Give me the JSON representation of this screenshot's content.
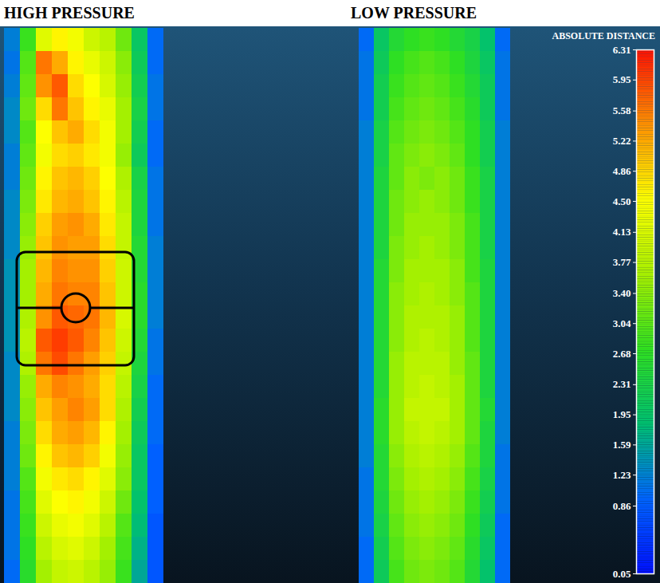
{
  "chart_data": {
    "type": "heatmap",
    "panels": [
      {
        "title": "HIGH PRESSURE",
        "cells": [
          [
            1.2,
            2.8,
            4.2,
            4.6,
            4.4,
            4.0,
            3.8,
            3.2,
            2.0,
            1.0
          ],
          [
            1.1,
            3.0,
            5.6,
            5.2,
            4.6,
            4.3,
            4.0,
            3.4,
            2.1,
            1.0
          ],
          [
            1.2,
            3.1,
            5.4,
            5.8,
            4.8,
            4.5,
            4.1,
            3.5,
            2.2,
            1.1
          ],
          [
            1.3,
            3.2,
            4.8,
            5.6,
            5.0,
            4.6,
            4.3,
            3.6,
            2.3,
            1.1
          ],
          [
            1.3,
            3.0,
            4.5,
            5.0,
            5.2,
            4.8,
            4.4,
            3.6,
            2.2,
            1.0
          ],
          [
            1.2,
            3.1,
            4.4,
            4.8,
            4.9,
            4.7,
            4.4,
            3.5,
            2.1,
            1.0
          ],
          [
            1.2,
            3.2,
            4.6,
            5.0,
            5.1,
            4.9,
            4.5,
            3.7,
            2.3,
            1.1
          ],
          [
            1.3,
            3.3,
            4.7,
            5.1,
            5.2,
            5.0,
            4.6,
            3.8,
            2.4,
            1.1
          ],
          [
            1.3,
            3.4,
            4.9,
            5.3,
            5.4,
            5.2,
            4.7,
            3.9,
            2.4,
            1.1
          ],
          [
            1.3,
            3.5,
            5.0,
            5.4,
            5.3,
            5.3,
            4.8,
            3.9,
            2.5,
            1.2
          ],
          [
            1.4,
            3.6,
            5.1,
            5.5,
            5.4,
            5.4,
            4.9,
            4.0,
            2.5,
            1.2
          ],
          [
            1.4,
            3.6,
            5.2,
            5.6,
            5.5,
            5.5,
            5.0,
            4.0,
            2.6,
            1.2
          ],
          [
            1.4,
            3.7,
            5.4,
            5.8,
            5.7,
            5.6,
            5.1,
            4.1,
            2.6,
            1.2
          ],
          [
            1.4,
            3.8,
            5.8,
            6.0,
            5.8,
            5.5,
            5.0,
            4.0,
            2.5,
            1.1
          ],
          [
            1.3,
            3.7,
            5.6,
            5.9,
            5.6,
            5.3,
            4.9,
            3.9,
            2.4,
            1.1
          ],
          [
            1.3,
            3.5,
            5.2,
            5.5,
            5.4,
            5.2,
            4.8,
            3.8,
            2.3,
            1.0
          ],
          [
            1.3,
            3.4,
            5.0,
            5.3,
            5.5,
            5.3,
            4.8,
            3.7,
            2.2,
            1.0
          ],
          [
            1.2,
            3.3,
            4.8,
            5.2,
            5.3,
            5.1,
            4.6,
            3.6,
            2.1,
            1.0
          ],
          [
            1.2,
            3.2,
            4.6,
            5.0,
            5.1,
            4.9,
            4.4,
            3.5,
            2.0,
            0.9
          ],
          [
            1.2,
            3.0,
            4.4,
            4.7,
            4.8,
            4.6,
            4.2,
            3.4,
            2.0,
            0.9
          ],
          [
            1.1,
            2.9,
            4.2,
            4.5,
            4.6,
            4.4,
            4.0,
            3.2,
            1.9,
            0.9
          ],
          [
            1.1,
            2.8,
            4.0,
            4.3,
            4.4,
            4.2,
            3.8,
            3.0,
            1.8,
            0.8
          ],
          [
            1.1,
            2.7,
            3.8,
            4.1,
            4.2,
            4.0,
            3.6,
            2.9,
            1.7,
            0.8
          ],
          [
            1.0,
            2.6,
            3.6,
            3.9,
            4.0,
            3.8,
            3.5,
            2.8,
            1.6,
            0.8
          ]
        ]
      },
      {
        "title": "LOW PRESSURE",
        "cells": [
          [
            1.0,
            2.0,
            2.5,
            2.7,
            2.8,
            2.7,
            2.5,
            2.3,
            1.9,
            1.0
          ],
          [
            1.1,
            2.1,
            2.7,
            2.9,
            3.0,
            2.9,
            2.7,
            2.4,
            2.0,
            1.1
          ],
          [
            1.1,
            2.2,
            2.8,
            3.0,
            3.1,
            3.0,
            2.8,
            2.5,
            2.1,
            1.1
          ],
          [
            1.1,
            2.2,
            2.9,
            3.1,
            3.2,
            3.1,
            2.9,
            2.6,
            2.1,
            1.1
          ],
          [
            1.2,
            2.3,
            3.0,
            3.2,
            3.3,
            3.2,
            3.0,
            2.7,
            2.2,
            1.2
          ],
          [
            1.2,
            2.3,
            3.1,
            3.3,
            3.4,
            3.3,
            3.1,
            2.7,
            2.2,
            1.2
          ],
          [
            1.2,
            2.4,
            3.1,
            3.4,
            3.3,
            3.4,
            3.2,
            2.8,
            2.3,
            1.2
          ],
          [
            1.2,
            2.4,
            3.2,
            3.4,
            3.5,
            3.4,
            3.2,
            2.8,
            2.3,
            1.2
          ],
          [
            1.2,
            2.4,
            3.2,
            3.5,
            3.5,
            3.5,
            3.3,
            2.9,
            2.3,
            1.2
          ],
          [
            1.2,
            2.4,
            3.3,
            3.5,
            3.6,
            3.5,
            3.3,
            2.9,
            2.3,
            1.2
          ],
          [
            1.2,
            2.5,
            3.3,
            3.6,
            3.6,
            3.6,
            3.4,
            2.9,
            2.4,
            1.2
          ],
          [
            1.2,
            2.5,
            3.4,
            3.6,
            3.7,
            3.6,
            3.4,
            3.0,
            2.4,
            1.2
          ],
          [
            1.2,
            2.5,
            3.4,
            3.7,
            3.7,
            3.7,
            3.5,
            3.0,
            2.4,
            1.2
          ],
          [
            1.2,
            2.5,
            3.4,
            3.7,
            3.8,
            3.7,
            3.5,
            3.0,
            2.4,
            1.2
          ],
          [
            1.2,
            2.5,
            3.5,
            3.8,
            3.8,
            3.8,
            3.5,
            3.1,
            2.4,
            1.2
          ],
          [
            1.2,
            2.5,
            3.5,
            3.8,
            3.9,
            3.8,
            3.6,
            3.1,
            2.4,
            1.2
          ],
          [
            1.2,
            2.6,
            3.5,
            3.9,
            3.9,
            3.9,
            3.6,
            3.1,
            2.5,
            1.2
          ],
          [
            1.2,
            2.6,
            3.5,
            3.8,
            3.9,
            3.8,
            3.6,
            3.1,
            2.4,
            1.2
          ],
          [
            1.2,
            2.5,
            3.4,
            3.7,
            3.8,
            3.7,
            3.5,
            3.0,
            2.4,
            1.1
          ],
          [
            1.1,
            2.5,
            3.3,
            3.6,
            3.7,
            3.6,
            3.4,
            2.9,
            2.3,
            1.1
          ],
          [
            1.1,
            2.4,
            3.2,
            3.5,
            3.6,
            3.5,
            3.3,
            2.8,
            2.2,
            1.1
          ],
          [
            1.1,
            2.3,
            3.1,
            3.4,
            3.5,
            3.4,
            3.2,
            2.7,
            2.1,
            1.0
          ],
          [
            1.0,
            2.2,
            3.0,
            3.3,
            3.4,
            3.3,
            3.1,
            2.6,
            2.0,
            1.0
          ],
          [
            1.0,
            2.1,
            2.9,
            3.2,
            3.3,
            3.2,
            3.0,
            2.5,
            1.9,
            1.0
          ]
        ]
      }
    ],
    "colorbar": {
      "label": "ABSOLUTE DISTANCE",
      "range": [
        0.05,
        6.31
      ],
      "ticks": [
        0.05,
        0.86,
        1.23,
        1.59,
        1.95,
        2.31,
        2.68,
        3.04,
        {
          "value": 3.4,
          "label": "3.40"
        },
        3.77,
        4.13,
        {
          "value": 4.5,
          "label": "4.50"
        },
        4.86,
        5.22,
        5.58,
        5.95,
        6.31
      ]
    }
  }
}
